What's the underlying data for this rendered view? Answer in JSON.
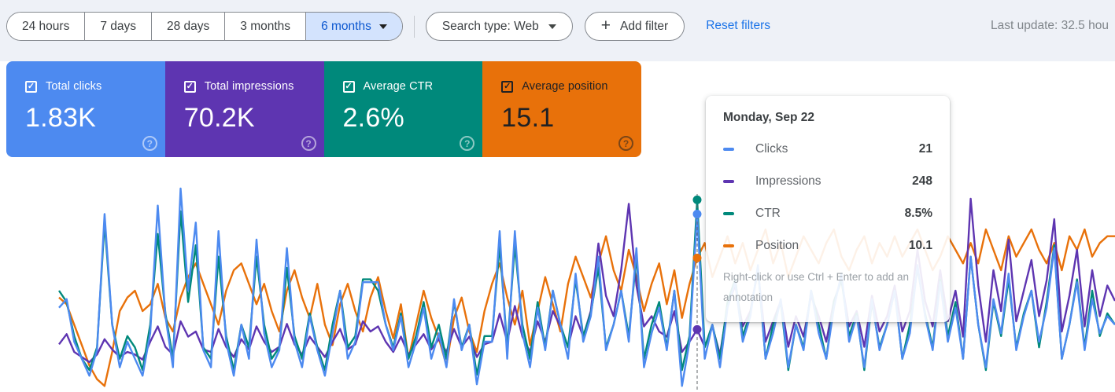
{
  "toolbar": {
    "date_ranges": [
      "24 hours",
      "7 days",
      "28 days",
      "3 months",
      "6 months"
    ],
    "selected_range": "6 months",
    "search_type_label": "Search type: Web",
    "add_filter_label": "Add filter",
    "reset_filters_label": "Reset filters",
    "last_update": "Last update: 32.5 hou"
  },
  "cards": [
    {
      "label": "Total clicks",
      "value": "1.83K",
      "color": "#4d8af0",
      "text": "light",
      "checked": true
    },
    {
      "label": "Total impressions",
      "value": "70.2K",
      "color": "#5e35b1",
      "text": "light",
      "checked": true
    },
    {
      "label": "Average CTR",
      "value": "2.6%",
      "color": "#00897b",
      "text": "light",
      "checked": true
    },
    {
      "label": "Average position",
      "value": "15.1",
      "color": "#e8710a",
      "text": "dark",
      "checked": true
    }
  ],
  "tooltip": {
    "title": "Monday, Sep 22",
    "rows": [
      {
        "label": "Clicks",
        "value": "21",
        "color": "#4d8af0"
      },
      {
        "label": "Impressions",
        "value": "248",
        "color": "#5e35b1"
      },
      {
        "label": "CTR",
        "value": "8.5%",
        "color": "#00897b"
      },
      {
        "label": "Position",
        "value": "10.1",
        "color": "#e8710a"
      }
    ],
    "hint": "Right-click or use Ctrl + Enter to add an annotation"
  },
  "chart_data": {
    "type": "line",
    "title": "",
    "x_unit": "day (6 months of daily values)",
    "grid": false,
    "axes_visible": false,
    "legend_position": "tooltip",
    "hover": {
      "index": 84,
      "label": "Monday, Sep 22",
      "values": {
        "clicks": 21,
        "impressions": 248,
        "ctr_pct": 8.5,
        "position": 10.1
      }
    },
    "series": [
      {
        "name": "Clicks",
        "color": "#4d8af0",
        "range": [
          0,
          24
        ],
        "values": [
          10,
          11,
          6,
          4,
          2,
          5,
          21,
          8,
          3,
          6,
          4,
          2,
          7,
          22,
          9,
          3,
          24,
          12,
          20,
          5,
          3,
          19,
          6,
          2,
          8,
          4,
          18,
          7,
          3,
          5,
          17,
          6,
          3,
          9,
          5,
          2,
          7,
          12,
          4,
          6,
          13,
          13,
          13,
          8,
          5,
          9,
          3,
          6,
          10,
          4,
          7,
          3,
          11,
          5,
          8,
          1,
          6,
          6,
          19,
          4,
          19,
          7,
          3,
          10,
          5,
          12,
          8,
          4,
          14,
          6,
          9,
          16,
          5,
          8,
          12,
          6,
          17,
          3,
          7,
          10,
          5,
          12,
          0.8,
          6,
          21,
          4,
          8,
          3,
          10,
          13,
          6,
          9,
          15,
          4,
          7,
          11,
          3,
          8,
          5,
          12,
          7,
          4,
          10,
          14,
          6,
          9,
          3,
          11,
          5,
          8,
          12,
          4,
          7,
          15,
          9,
          5,
          13,
          6,
          10,
          4,
          16,
          8,
          3,
          11,
          7,
          14,
          5,
          9,
          12,
          6,
          10,
          17,
          4,
          8,
          13,
          5,
          11,
          7,
          9,
          8
        ]
      },
      {
        "name": "Impressions",
        "color": "#5e35b1",
        "range": [
          0,
          800
        ],
        "values": [
          190,
          230,
          160,
          140,
          120,
          150,
          210,
          170,
          140,
          160,
          150,
          130,
          200,
          260,
          180,
          150,
          280,
          220,
          240,
          170,
          160,
          250,
          180,
          140,
          210,
          170,
          260,
          200,
          160,
          180,
          270,
          190,
          150,
          220,
          180,
          140,
          200,
          250,
          170,
          190,
          280,
          240,
          260,
          200,
          160,
          220,
          150,
          190,
          230,
          170,
          210,
          160,
          250,
          180,
          220,
          140,
          190,
          200,
          310,
          200,
          340,
          220,
          160,
          280,
          200,
          320,
          260,
          180,
          300,
          220,
          320,
          585,
          380,
          300,
          480,
          740,
          420,
          260,
          300,
          240,
          220,
          320,
          160,
          200,
          248,
          180,
          260,
          150,
          340,
          420,
          260,
          320,
          480,
          200,
          280,
          360,
          180,
          300,
          220,
          380,
          300,
          200,
          360,
          440,
          260,
          320,
          180,
          380,
          240,
          300,
          420,
          240,
          320,
          560,
          360,
          260,
          480,
          280,
          400,
          220,
          760,
          420,
          200,
          480,
          320,
          600,
          280,
          400,
          520,
          300,
          440,
          680,
          240,
          380,
          560,
          260,
          480,
          300,
          420,
          360
        ]
      },
      {
        "name": "CTR",
        "color": "#00897b",
        "range": [
          0,
          9
        ],
        "values": [
          4.5,
          4,
          2.5,
          1.5,
          1,
          2,
          7.5,
          3,
          1.5,
          2.5,
          2,
          1,
          3,
          7,
          3.5,
          1.5,
          8,
          4,
          6.5,
          2,
          1.5,
          6,
          2.5,
          1,
          3,
          2,
          6,
          3,
          1.5,
          2,
          5.5,
          2.5,
          1.5,
          3.5,
          2,
          1,
          3,
          4.5,
          2,
          2.5,
          5,
          5,
          4.5,
          3,
          2,
          3.5,
          1.5,
          2.5,
          4,
          2,
          3,
          1.5,
          4,
          2,
          3,
          0.8,
          2.5,
          2.5,
          6.5,
          2,
          6.5,
          3,
          1.5,
          4,
          2,
          4.5,
          3,
          2,
          5,
          2.5,
          3.5,
          5.5,
          2,
          3,
          4.5,
          2.5,
          6,
          1.5,
          3,
          4,
          2,
          4.5,
          1,
          2.5,
          8.5,
          2,
          3,
          1.5,
          4,
          5,
          2.5,
          3.5,
          5.5,
          1.5,
          3,
          4,
          1,
          3,
          2,
          4.5,
          3,
          1.5,
          4,
          5,
          2.5,
          3.5,
          1,
          4,
          2,
          3,
          4.5,
          1.5,
          3,
          5.5,
          3.5,
          2,
          5,
          2.5,
          4,
          1.5,
          6,
          3,
          1,
          4,
          2.5,
          5,
          2,
          3.5,
          4.5,
          2,
          4,
          6.5,
          1.5,
          3,
          5,
          2,
          4.5,
          2.5,
          3.5,
          3
        ]
      },
      {
        "name": "Position",
        "color": "#e8710a",
        "range": [
          20,
          5
        ],
        "inverted_axis": true,
        "values": [
          13,
          13.5,
          15,
          16.5,
          18,
          19,
          19.5,
          17,
          14,
          13,
          12.5,
          14,
          13.5,
          12,
          14.5,
          15.5,
          13,
          11.5,
          10.5,
          12,
          13.5,
          15,
          12.5,
          11,
          10.5,
          12,
          13.5,
          12,
          14,
          15.5,
          12.5,
          11,
          13,
          14.5,
          12,
          15,
          16.5,
          13.5,
          12,
          14,
          15.5,
          13,
          11.5,
          14,
          16,
          13.5,
          17.5,
          15,
          12.5,
          14.5,
          16,
          18,
          14.5,
          13,
          15.5,
          17,
          14,
          12,
          10.5,
          13,
          15,
          12.5,
          16.5,
          14,
          11.5,
          13.5,
          15.5,
          12,
          10,
          11.5,
          13,
          10.5,
          8.5,
          11,
          12.5,
          9.5,
          11.5,
          14,
          12,
          10.5,
          13.5,
          11,
          14.5,
          12,
          10.1,
          9,
          11.5,
          10,
          8.5,
          10.5,
          9,
          11,
          9.5,
          8,
          10.5,
          9,
          11.5,
          10,
          8.5,
          9.5,
          10.5,
          9,
          8,
          10,
          11,
          9.5,
          8.5,
          10.5,
          9,
          10,
          8.5,
          10,
          9,
          8,
          9.5,
          11,
          10,
          8.5,
          9.5,
          10.5,
          9,
          10.5,
          8,
          9.5,
          11,
          8.5,
          10,
          9,
          8,
          9.5,
          10.5,
          9,
          11,
          8.5,
          9.5,
          8,
          10,
          9,
          8.5,
          8.5
        ]
      }
    ]
  }
}
